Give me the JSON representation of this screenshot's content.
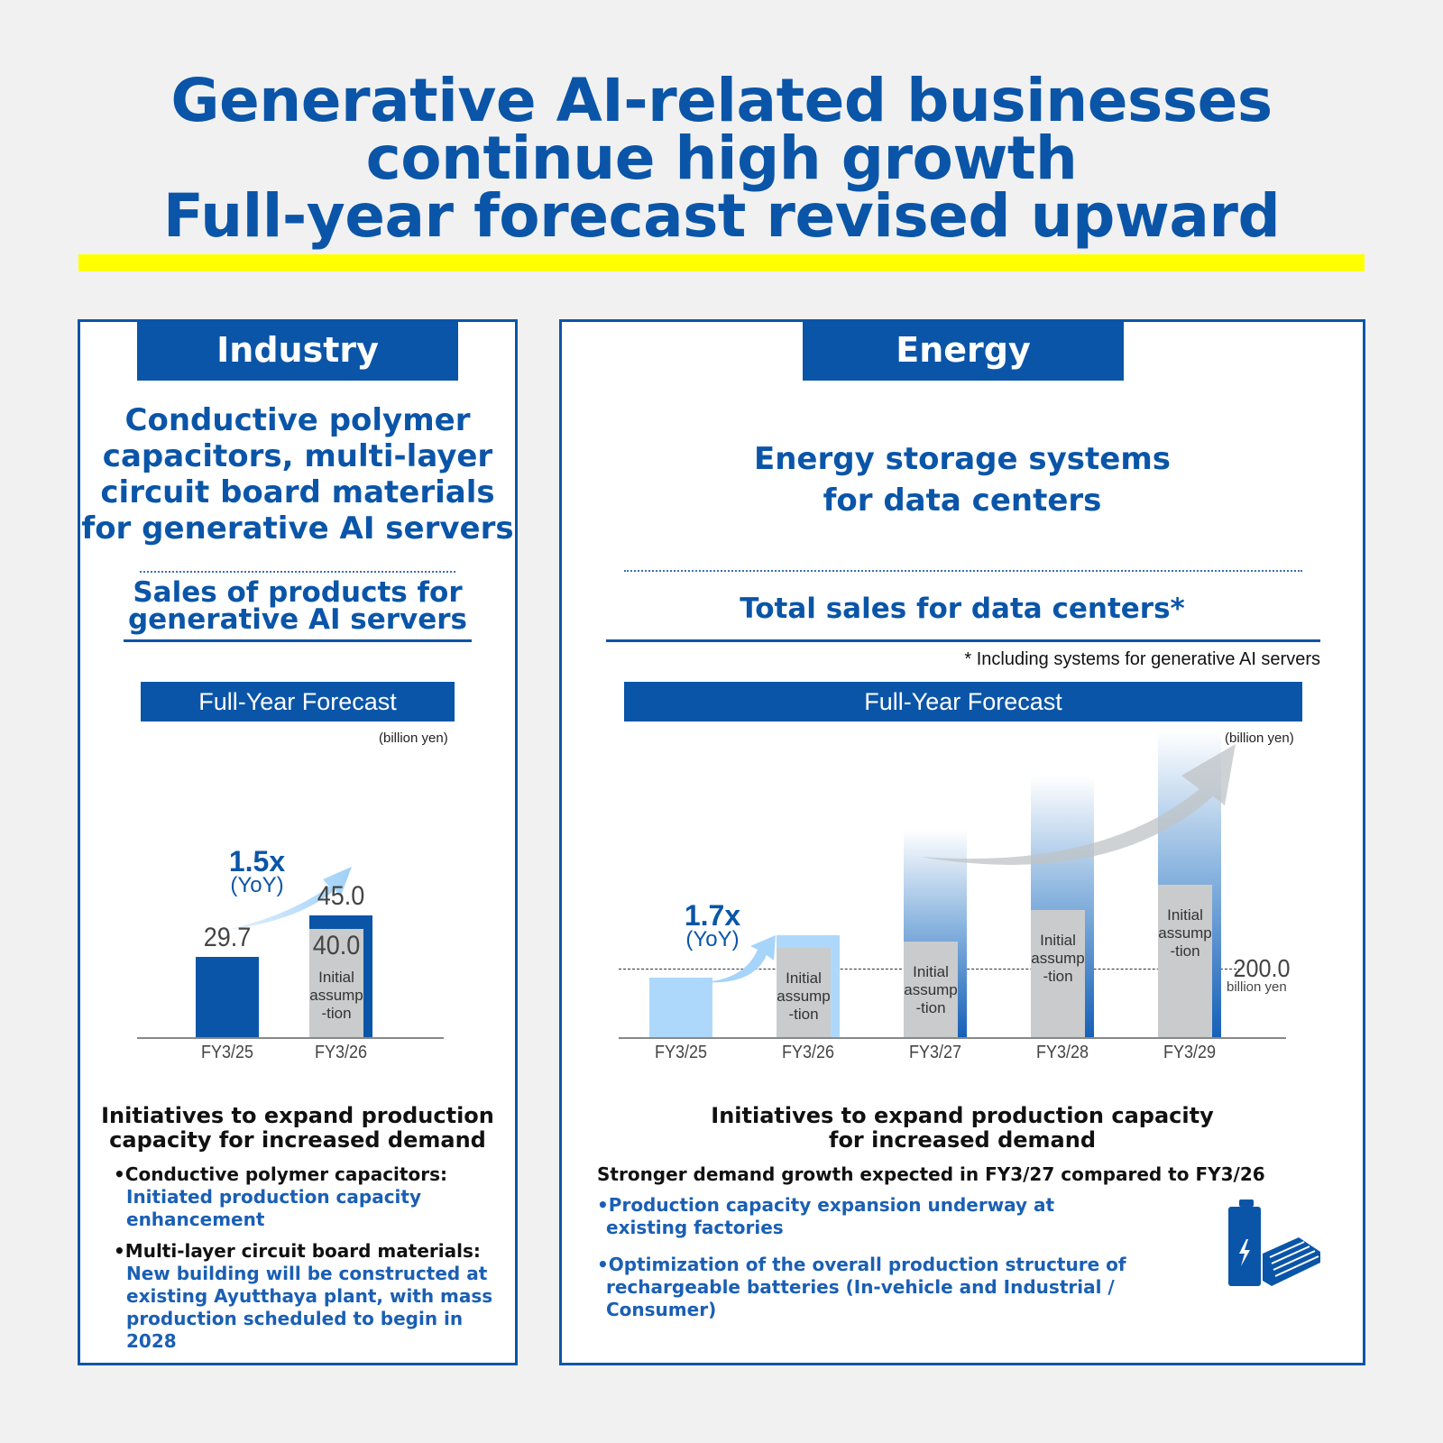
{
  "headline": {
    "line1": "Generative AI-related businesses",
    "line2": "continue high growth",
    "line3": "Full-year forecast revised upward"
  },
  "colors": {
    "brand": "#0a55a8",
    "highlight": "#ffff00",
    "light_blue": "#aed8fb",
    "gray": "#c9cbcc"
  },
  "industry": {
    "tag": "Industry",
    "subtitle": [
      "Conductive polymer",
      "capacitors, multi-layer",
      "circuit board materials",
      "for generative AI servers"
    ],
    "metric": [
      "Sales of products for",
      "generative AI servers"
    ],
    "forecast_label": "Full-Year Forecast",
    "unit": "(billion yen)",
    "yoy": "1.5x",
    "yoy_sub": "(YoY)",
    "initial_label": [
      "Initial",
      "assump",
      "-tion"
    ],
    "initiatives_title": [
      "Initiatives to expand production",
      "capacity for increased demand"
    ],
    "bullets": [
      {
        "head": "Conductive polymer capacitors:",
        "body": [
          "Initiated production capacity",
          "enhancement"
        ]
      },
      {
        "head": "Multi-layer circuit board materials:",
        "body": [
          "New building will be constructed at",
          "existing Ayutthaya plant, with mass",
          "production scheduled to begin in 2028"
        ]
      }
    ]
  },
  "energy": {
    "tag": "Energy",
    "subtitle": [
      "Energy storage systems",
      "for data centers"
    ],
    "metric": "Total sales for data centers*",
    "footnote": "* Including systems for generative AI servers",
    "forecast_label": "Full-Year Forecast",
    "unit": "(billion yen)",
    "yoy": "1.7x",
    "yoy_sub": "(YoY)",
    "initial_label": [
      "Initial",
      "assump",
      "-tion"
    ],
    "initiatives_title": [
      "Initiatives to expand production capacity",
      "for increased demand"
    ],
    "lead": "Stronger demand growth expected in FY3/27 compared to FY3/26",
    "bullets": [
      [
        "Production capacity expansion underway at",
        "existing factories"
      ],
      [
        "Optimization of the overall production structure of",
        "rechargeable batteries (In-vehicle and Industrial / Consumer)"
      ]
    ],
    "icons": [
      "battery-icon",
      "battery-module-icon"
    ]
  },
  "chart_data": [
    {
      "type": "bar",
      "unit": "(billion yen)",
      "categories": [
        "FY3/25",
        "FY3/26"
      ],
      "series": [
        {
          "values": [
            29.7,
            45.0
          ]
        }
      ],
      "initial_assumption": [
        null,
        40.0
      ],
      "data_labels": [
        "29.7",
        "45.0"
      ],
      "initial_labels": [
        null,
        "40.0"
      ],
      "annotation": "1.5x (YoY)"
    },
    {
      "type": "bar",
      "unit": "(billion yen)",
      "categories": [
        "FY3/25",
        "FY3/26",
        "FY3/27",
        "FY3/28",
        "FY3/29"
      ],
      "series": [
        {
          "values": [
            174,
            297,
            605,
            763,
            895
          ]
        }
      ],
      "initial_assumption": [
        null,
        260,
        279,
        371,
        445
      ],
      "reference_line": {
        "value": 200.0,
        "label": "200.0",
        "sublabel": "billion yen"
      },
      "annotation": "1.7x (YoY)",
      "ylim": [
        0,
        900
      ]
    }
  ]
}
